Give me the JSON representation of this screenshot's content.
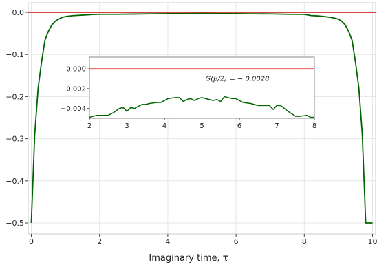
{
  "chart_data": [
    {
      "type": "line",
      "xlabel": "Imaginary time, τ",
      "xlim": [
        0,
        10
      ],
      "ylim": [
        -0.52,
        0.01
      ],
      "xticks": [
        0,
        2,
        4,
        6,
        8,
        10
      ],
      "xtick_labels": [
        "0",
        "2",
        "4",
        "6",
        "8",
        "10"
      ],
      "yticks": [
        0.0,
        -0.1,
        -0.2,
        -0.3,
        -0.4,
        -0.5
      ],
      "ytick_labels": [
        "0.0",
        "−0.1",
        "−0.2",
        "−0.3",
        "−0.4",
        "−0.5"
      ],
      "grid": true,
      "hline": {
        "y": 0.0,
        "color": "#d62728"
      },
      "series": [
        {
          "color": "#006400",
          "x": [
            0.0,
            0.1,
            0.2,
            0.3,
            0.4,
            0.5,
            0.6,
            0.7,
            0.8,
            0.9,
            1.0,
            1.2,
            1.4,
            1.6,
            1.8,
            2.0,
            2.5,
            3.0,
            3.5,
            4.0,
            4.5,
            5.0,
            5.5,
            6.0,
            6.5,
            7.0,
            7.5,
            8.0,
            8.2,
            8.4,
            8.6,
            8.8,
            9.0,
            9.1,
            9.2,
            9.3,
            9.4,
            9.5,
            9.6,
            9.7,
            9.8,
            9.9,
            10.0
          ],
          "y": [
            -0.5,
            -0.29,
            -0.18,
            -0.118,
            -0.066,
            -0.045,
            -0.03,
            -0.021,
            -0.016,
            -0.012,
            -0.01,
            -0.008,
            -0.007,
            -0.006,
            -0.005,
            -0.0045,
            -0.0045,
            -0.004,
            -0.0035,
            -0.003,
            -0.0031,
            -0.0028,
            -0.0031,
            -0.0032,
            -0.0035,
            -0.0037,
            -0.0045,
            -0.0047,
            -0.0075,
            -0.0085,
            -0.01,
            -0.012,
            -0.016,
            -0.021,
            -0.03,
            -0.045,
            -0.066,
            -0.118,
            -0.18,
            -0.29,
            -0.5,
            -0.5,
            -0.5
          ]
        }
      ]
    },
    {
      "type": "line",
      "inset": true,
      "xlim": [
        2,
        8
      ],
      "ylim": [
        -0.005,
        0.0012
      ],
      "xticks": [
        2,
        3,
        4,
        5,
        6,
        7,
        8
      ],
      "xtick_labels": [
        "2",
        "3",
        "4",
        "5",
        "6",
        "7",
        "8"
      ],
      "yticks": [
        0.0,
        -0.002,
        -0.004
      ],
      "ytick_labels": [
        "0.000",
        "−0.002",
        "−0.004"
      ],
      "hline": {
        "y": 0.0,
        "color": "#d62728"
      },
      "annotation": {
        "x": 5.0,
        "text": "G(β/2) = − 0.0028"
      },
      "series": [
        {
          "color": "#006400",
          "x": [
            2.0,
            2.2,
            2.35,
            2.5,
            2.65,
            2.8,
            2.9,
            3.0,
            3.1,
            3.2,
            3.3,
            3.4,
            3.5,
            3.6,
            3.8,
            3.9,
            4.0,
            4.1,
            4.3,
            4.4,
            4.5,
            4.6,
            4.7,
            4.8,
            4.9,
            5.0,
            5.2,
            5.3,
            5.4,
            5.5,
            5.6,
            5.8,
            5.9,
            6.1,
            6.3,
            6.5,
            6.8,
            6.9,
            7.0,
            7.1,
            7.3,
            7.5,
            7.6,
            7.8,
            7.9,
            8.0
          ],
          "y": [
            -0.0049,
            -0.0047,
            -0.0047,
            -0.0047,
            -0.0044,
            -0.004,
            -0.0039,
            -0.0043,
            -0.0039,
            -0.004,
            -0.0038,
            -0.0036,
            -0.0036,
            -0.0035,
            -0.0034,
            -0.0034,
            -0.0032,
            -0.003,
            -0.0029,
            -0.0029,
            -0.0033,
            -0.0031,
            -0.003,
            -0.0032,
            -0.003,
            -0.0029,
            -0.0031,
            -0.0032,
            -0.0031,
            -0.0033,
            -0.0028,
            -0.003,
            -0.003,
            -0.0034,
            -0.0035,
            -0.0037,
            -0.0037,
            -0.0041,
            -0.0037,
            -0.0037,
            -0.0043,
            -0.0048,
            -0.0048,
            -0.0047,
            -0.0049,
            -0.0049
          ]
        }
      ]
    }
  ]
}
